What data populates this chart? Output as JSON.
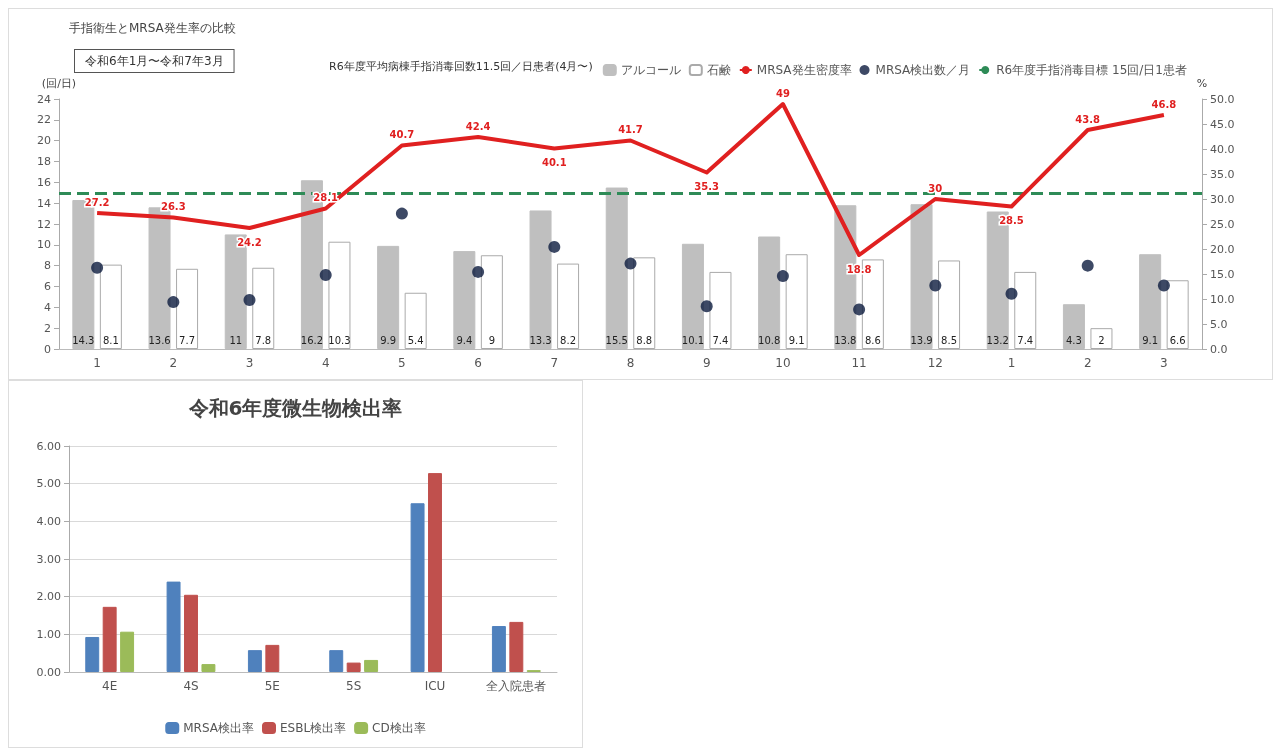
{
  "chart_data": [
    {
      "type": "bar",
      "title": "手指衛生とMRSA発生率の比較",
      "subtitle": "令和6年1月〜令和7年3月",
      "annotations": [
        "R6年度平均病棟手指消毒回数11.5回／日患者(4月〜)"
      ],
      "ylabel": "(回/日)",
      "y2label": "%",
      "categories": [
        "1",
        "2",
        "3",
        "4",
        "5",
        "6",
        "7",
        "8",
        "9",
        "10",
        "11",
        "12",
        "1",
        "2",
        "3"
      ],
      "series": [
        {
          "name": "アルコール",
          "type": "bar",
          "color": "#bfbfbf",
          "data_labels": true,
          "values": [
            14.3,
            13.6,
            11,
            16.2,
            9.9,
            9.4,
            13.3,
            15.5,
            10.1,
            10.8,
            13.8,
            13.9,
            13.2,
            4.3,
            9.1
          ]
        },
        {
          "name": "石鹸",
          "type": "bar",
          "color": "#ffffff",
          "data_labels": true,
          "values": [
            8.1,
            7.7,
            7.8,
            10.3,
            5.4,
            9.0,
            8.2,
            8.8,
            7.4,
            9.1,
            8.6,
            8.5,
            7.4,
            2.0,
            6.6
          ]
        },
        {
          "name": "MRSA発生密度率",
          "type": "line",
          "color": "#e02020",
          "axis": "y2",
          "marker": "none",
          "data_labels": true,
          "values": [
            27.2,
            26.3,
            24.2,
            28.1,
            40.7,
            42.4,
            40.1,
            41.7,
            35.3,
            49.0,
            18.8,
            30.0,
            28.5,
            43.8,
            46.8
          ]
        },
        {
          "name": "MRSA検出数／月",
          "type": "scatter",
          "color": "#0d1b3e",
          "marker": "circle",
          "values": [
            7.8,
            4.5,
            4.7,
            7.1,
            13.0,
            7.4,
            9.8,
            8.2,
            4.1,
            7.0,
            3.8,
            6.1,
            5.3,
            8.0,
            6.1
          ]
        }
      ],
      "ylim": [
        0,
        24
      ],
      "yticks": [
        0,
        2,
        4,
        6,
        8,
        10,
        12,
        14,
        16,
        18,
        20,
        22,
        24
      ],
      "y2lim": [
        0,
        50
      ],
      "y2ticks": [
        {
          "value": 0,
          "label": "0.0"
        },
        {
          "value": 5,
          "label": "5.0"
        },
        {
          "value": 10,
          "label": "10.0"
        },
        {
          "value": 15,
          "label": "15.0"
        },
        {
          "value": 20,
          "label": "20.0"
        },
        {
          "value": 25,
          "label": "25.0"
        },
        {
          "value": 30,
          "label": "30.0"
        },
        {
          "value": 35,
          "label": "35.0"
        },
        {
          "value": 40,
          "label": "40.0"
        },
        {
          "value": 45,
          "label": "45.0"
        },
        {
          "value": 50,
          "label": "50.0"
        }
      ],
      "ref_lines": [
        {
          "axis": "y",
          "value": 15,
          "label": "R6年度手指消毒目標 15回/日1患者",
          "color": "#2e8b57",
          "line_style": "dashed"
        }
      ],
      "legend": "top right"
    },
    {
      "type": "bar",
      "title": "令和6年度微生物検出率",
      "categories": [
        "4E",
        "4S",
        "5E",
        "5S",
        "ICU",
        "全入院患者"
      ],
      "series": [
        {
          "name": "MRSA検出率",
          "color": "#4f81bd",
          "values": [
            0.93,
            2.4,
            0.58,
            0.58,
            4.48,
            1.22
          ]
        },
        {
          "name": "ESBL検出率",
          "color": "#c0504d",
          "values": [
            1.73,
            2.05,
            0.72,
            0.25,
            5.28,
            1.33
          ]
        },
        {
          "name": "CD検出率",
          "color": "#9bbb59",
          "values": [
            1.07,
            0.21,
            null,
            0.32,
            null,
            0.05
          ]
        }
      ],
      "ylim": [
        0,
        6
      ],
      "yticks": [
        {
          "value": 0,
          "label": "0.00"
        },
        {
          "value": 1,
          "label": "1.00"
        },
        {
          "value": 2,
          "label": "2.00"
        },
        {
          "value": 3,
          "label": "3.00"
        },
        {
          "value": 4,
          "label": "4.00"
        },
        {
          "value": 5,
          "label": "5.00"
        },
        {
          "value": 6,
          "label": "6.00"
        }
      ],
      "grid": "y",
      "legend": "bottom"
    }
  ]
}
